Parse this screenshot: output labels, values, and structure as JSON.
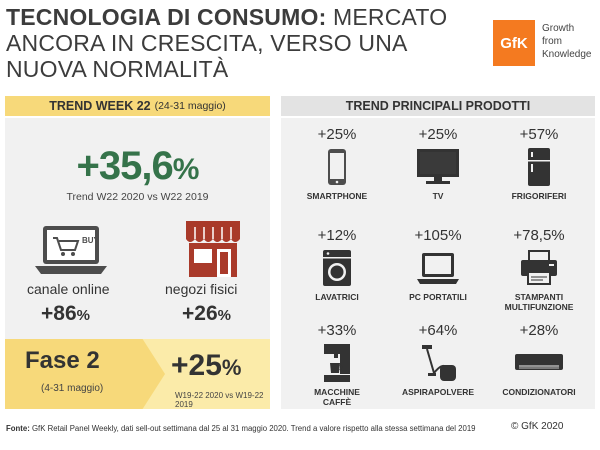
{
  "header": {
    "title_bold": "TECNOLOGIA DI CONSUMO:",
    "title_rest": " MERCATO ANCORA IN CRESCITA, VERSO UNA NUOVA NORMALITÀ",
    "logo": "GfK",
    "tagline_1": "Growth",
    "tagline_2": "from",
    "tagline_3": "Knowledge"
  },
  "left": {
    "header_bold": "TREND WEEK 22",
    "header_small": "(24-31 maggio)",
    "trend_value": "+35,6",
    "trend_pct": "%",
    "trend_sub": "Trend W22 2020 vs W22 2019",
    "online_label": "canale online",
    "online_value": "+86",
    "online_pct": "%",
    "laptop_badge": "BUY",
    "stores_label": "negozi fisici",
    "stores_value": "+26",
    "stores_pct": "%",
    "fase_title": "Fase 2",
    "fase_sub": "(4-31 maggio)",
    "fase_value": "+25",
    "fase_pct": "%",
    "fase_comp": "W19-22 2020 vs W19-22 2019"
  },
  "right": {
    "header": "TREND PRINCIPALI PRODOTTI",
    "products": [
      {
        "value": "+25%",
        "name": "SMARTPHONE",
        "icon": "smartphone-icon"
      },
      {
        "value": "+25%",
        "name": "TV",
        "icon": "tv-icon"
      },
      {
        "value": "+57%",
        "name": "FRIGORIFERI",
        "icon": "fridge-icon"
      },
      {
        "value": "+12%",
        "name": "LAVATRICI",
        "icon": "washing-machine-icon"
      },
      {
        "value": "+105%",
        "name": "PC PORTATILI",
        "icon": "laptop-icon"
      },
      {
        "value": "+78,5%",
        "name": "STAMPANTI MULTIFUNZIONE",
        "icon": "printer-icon"
      },
      {
        "value": "+33%",
        "name": "MACCHINE CAFFÈ",
        "icon": "coffee-machine-icon"
      },
      {
        "value": "+64%",
        "name": "ASPIRAPOLVERE",
        "icon": "vacuum-icon"
      },
      {
        "value": "+28%",
        "name": "CONDIZIONATORI",
        "icon": "air-conditioner-icon"
      }
    ]
  },
  "footer": {
    "source_label": "Fonte:",
    "source_text": " GfK Retail Panel Weekly, dati sell-out settimana dal 25 al 31 maggio 2020. Trend a valore rispetto alla stessa settimana del 2019",
    "copyright": "© GfK 2020"
  },
  "colors": {
    "accent_yellow": "#f7d97a",
    "band_yellow": "#fbeba9",
    "trend_green": "#35734a",
    "store_red": "#a93a2a",
    "logo_orange": "#f47a20"
  }
}
